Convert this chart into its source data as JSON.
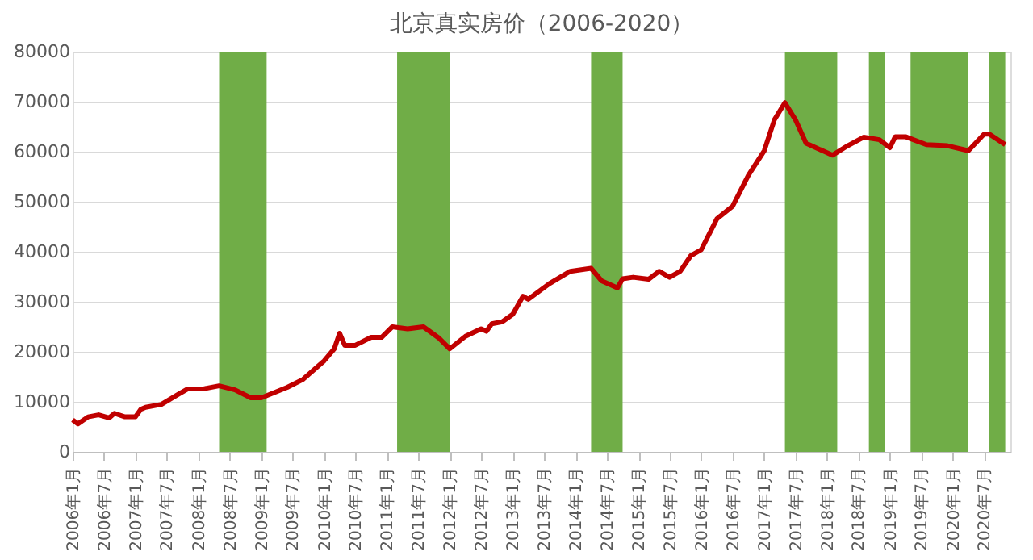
{
  "chart_data": {
    "type": "line",
    "title": "北京真实房价（2006-2020）",
    "xlim": [
      "2006-01",
      "2020-12"
    ],
    "xticks": [
      {
        "value": "2006-01",
        "label": "2006年1月"
      },
      {
        "value": "2006-07",
        "label": "2006年7月"
      },
      {
        "value": "2007-01",
        "label": "2007年1月"
      },
      {
        "value": "2007-07",
        "label": "2007年7月"
      },
      {
        "value": "2008-01",
        "label": "2008年1月"
      },
      {
        "value": "2008-07",
        "label": "2008年7月"
      },
      {
        "value": "2009-01",
        "label": "2009年1月"
      },
      {
        "value": "2009-07",
        "label": "2009年7月"
      },
      {
        "value": "2010-01",
        "label": "2010年1月"
      },
      {
        "value": "2010-07",
        "label": "2010年7月"
      },
      {
        "value": "2011-01",
        "label": "2011年1月"
      },
      {
        "value": "2011-07",
        "label": "2011年7月"
      },
      {
        "value": "2012-01",
        "label": "2012年1月"
      },
      {
        "value": "2012-07",
        "label": "2012年7月"
      },
      {
        "value": "2013-01",
        "label": "2013年1月"
      },
      {
        "value": "2013-07",
        "label": "2013年7月"
      },
      {
        "value": "2014-01",
        "label": "2014年1月"
      },
      {
        "value": "2014-07",
        "label": "2014年7月"
      },
      {
        "value": "2015-01",
        "label": "2015年1月"
      },
      {
        "value": "2015-07",
        "label": "2015年7月"
      },
      {
        "value": "2016-01",
        "label": "2016年1月"
      },
      {
        "value": "2016-07",
        "label": "2016年7月"
      },
      {
        "value": "2017-01",
        "label": "2017年1月"
      },
      {
        "value": "2017-07",
        "label": "2017年7月"
      },
      {
        "value": "2018-01",
        "label": "2018年1月"
      },
      {
        "value": "2018-07",
        "label": "2018年7月"
      },
      {
        "value": "2019-01",
        "label": "2019年1月"
      },
      {
        "value": "2019-07",
        "label": "2019年7月"
      },
      {
        "value": "2020-01",
        "label": "2020年1月"
      },
      {
        "value": "2020-07",
        "label": "2020年7月"
      }
    ],
    "ylim": [
      0,
      80000
    ],
    "yticks": [
      0,
      10000,
      20000,
      30000,
      40000,
      50000,
      60000,
      70000,
      80000
    ],
    "grid": "y",
    "legend": false,
    "bands": [
      {
        "axis": "x",
        "from": "2008-05",
        "to": "2009-02",
        "color": "#70ad47"
      },
      {
        "axis": "x",
        "from": "2011-03",
        "to": "2012-01",
        "color": "#70ad47"
      },
      {
        "axis": "x",
        "from": "2014-04",
        "to": "2014-10",
        "color": "#70ad47"
      },
      {
        "axis": "x",
        "from": "2017-05",
        "to": "2018-03",
        "color": "#70ad47"
      },
      {
        "axis": "x",
        "from": "2018-09",
        "to": "2018-12",
        "color": "#70ad47"
      },
      {
        "axis": "x",
        "from": "2019-05",
        "to": "2020-04",
        "color": "#70ad47"
      },
      {
        "axis": "x",
        "from": "2020-08",
        "to": "2020-11",
        "color": "#70ad47"
      }
    ],
    "series": [
      {
        "type": "line",
        "color": "#c00000",
        "line_style": "solid",
        "x": [
          "2006-01",
          "2006-02",
          "2006-04",
          "2006-06",
          "2006-08",
          "2006-09",
          "2006-11",
          "2007-01",
          "2007-02",
          "2007-03",
          "2007-06",
          "2007-09",
          "2007-11",
          "2008-02",
          "2008-05",
          "2008-08",
          "2008-11",
          "2009-01",
          "2009-06",
          "2009-09",
          "2010-01",
          "2010-03",
          "2010-04",
          "2010-05",
          "2010-07",
          "2010-10",
          "2010-12",
          "2011-02",
          "2011-05",
          "2011-08",
          "2011-11",
          "2012-01",
          "2012-04",
          "2012-07",
          "2012-08",
          "2012-09",
          "2012-11",
          "2013-01",
          "2013-03",
          "2013-04",
          "2013-08",
          "2013-12",
          "2014-04",
          "2014-06",
          "2014-09",
          "2014-10",
          "2014-12",
          "2015-03",
          "2015-05",
          "2015-07",
          "2015-09",
          "2015-11",
          "2016-01",
          "2016-04",
          "2016-07",
          "2016-10",
          "2017-01",
          "2017-03",
          "2017-05",
          "2017-07",
          "2017-09",
          "2018-02",
          "2018-05",
          "2018-08",
          "2018-11",
          "2019-01",
          "2019-02",
          "2019-04",
          "2019-08",
          "2019-12",
          "2020-04",
          "2020-07",
          "2020-08",
          "2020-11"
        ],
        "values": [
          6400,
          5600,
          7000,
          7400,
          6800,
          7700,
          7000,
          7000,
          8500,
          8900,
          9500,
          11400,
          12600,
          12600,
          13200,
          12400,
          10800,
          10800,
          12900,
          14500,
          18200,
          20600,
          23700,
          21300,
          21300,
          22900,
          22900,
          25000,
          24600,
          25000,
          22700,
          20600,
          23100,
          24600,
          24100,
          25600,
          26000,
          27500,
          31100,
          30500,
          33600,
          36100,
          36700,
          34200,
          32800,
          34600,
          34900,
          34500,
          36100,
          34900,
          36100,
          39200,
          40400,
          46600,
          49100,
          55300,
          60200,
          66400,
          69800,
          66400,
          61700,
          59300,
          61200,
          62900,
          62400,
          60800,
          63000,
          63000,
          61400,
          61200,
          60200,
          63500,
          63500,
          61400
        ]
      }
    ]
  }
}
